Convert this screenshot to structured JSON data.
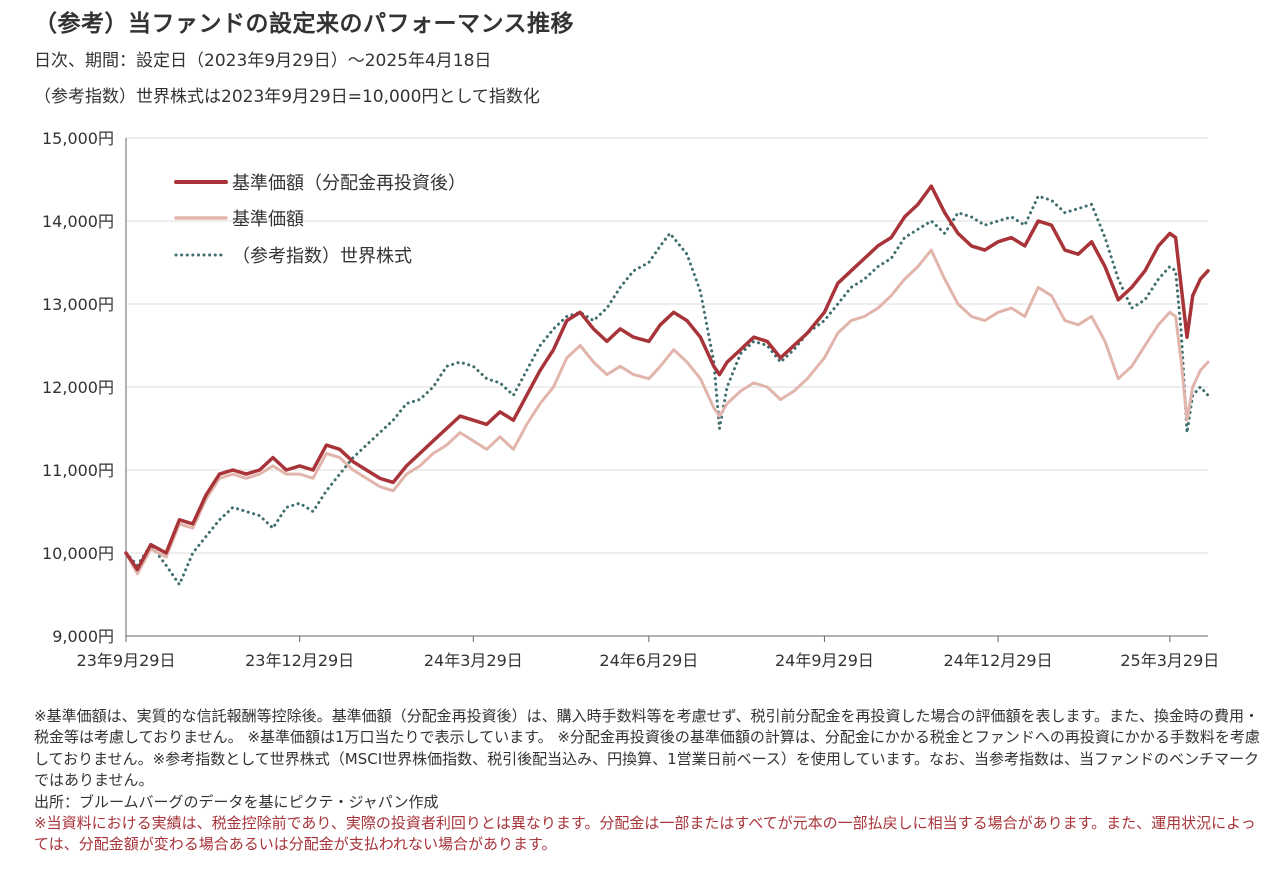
{
  "header": {
    "title": "（参考）当ファンドの設定来のパフォーマンス推移",
    "subtitle1": "日次、期間：設定日（2023年9月29日）～2025年4月18日",
    "subtitle2": "（参考指数）世界株式は2023年9月29日=10,000円として指数化"
  },
  "chart_data": {
    "type": "line",
    "y_ticks": [
      "9,000円",
      "10,000円",
      "11,000円",
      "12,000円",
      "13,000円",
      "14,000円",
      "15,000円"
    ],
    "ylim": [
      9000,
      15000
    ],
    "x_ticks": [
      "23年9月29日",
      "23年12月29日",
      "24年3月29日",
      "24年6月29日",
      "24年9月29日",
      "24年12月29日",
      "25年3月29日"
    ],
    "x_tick_dates": [
      "2023-09-29",
      "2023-12-29",
      "2024-03-29",
      "2024-06-29",
      "2024-09-29",
      "2024-12-29",
      "2025-03-29"
    ],
    "x_range": [
      "2023-09-29",
      "2025-04-18"
    ],
    "grid": true,
    "legend_position": "top-left",
    "series": [
      {
        "name": "基準価額（分配金再投資後）",
        "color": "#a8343a",
        "style": "solid",
        "points": [
          [
            "2023-09-29",
            10000
          ],
          [
            "2023-10-05",
            9800
          ],
          [
            "2023-10-12",
            10100
          ],
          [
            "2023-10-20",
            10000
          ],
          [
            "2023-10-27",
            10400
          ],
          [
            "2023-11-03",
            10350
          ],
          [
            "2023-11-10",
            10700
          ],
          [
            "2023-11-17",
            10950
          ],
          [
            "2023-11-24",
            11000
          ],
          [
            "2023-12-01",
            10950
          ],
          [
            "2023-12-08",
            11000
          ],
          [
            "2023-12-15",
            11150
          ],
          [
            "2023-12-22",
            11000
          ],
          [
            "2023-12-29",
            11050
          ],
          [
            "2024-01-05",
            11000
          ],
          [
            "2024-01-12",
            11300
          ],
          [
            "2024-01-19",
            11250
          ],
          [
            "2024-01-26",
            11100
          ],
          [
            "2024-02-02",
            11000
          ],
          [
            "2024-02-09",
            10900
          ],
          [
            "2024-02-16",
            10850
          ],
          [
            "2024-02-23",
            11050
          ],
          [
            "2024-03-01",
            11200
          ],
          [
            "2024-03-08",
            11350
          ],
          [
            "2024-03-15",
            11500
          ],
          [
            "2024-03-22",
            11650
          ],
          [
            "2024-03-29",
            11600
          ],
          [
            "2024-04-05",
            11550
          ],
          [
            "2024-04-12",
            11700
          ],
          [
            "2024-04-19",
            11600
          ],
          [
            "2024-04-26",
            11900
          ],
          [
            "2024-05-03",
            12200
          ],
          [
            "2024-05-10",
            12450
          ],
          [
            "2024-05-17",
            12800
          ],
          [
            "2024-05-24",
            12900
          ],
          [
            "2024-05-31",
            12700
          ],
          [
            "2024-06-07",
            12550
          ],
          [
            "2024-06-14",
            12700
          ],
          [
            "2024-06-21",
            12600
          ],
          [
            "2024-06-29",
            12550
          ],
          [
            "2024-07-05",
            12750
          ],
          [
            "2024-07-12",
            12900
          ],
          [
            "2024-07-19",
            12800
          ],
          [
            "2024-07-26",
            12600
          ],
          [
            "2024-08-02",
            12250
          ],
          [
            "2024-08-05",
            12150
          ],
          [
            "2024-08-09",
            12300
          ],
          [
            "2024-08-16",
            12450
          ],
          [
            "2024-08-23",
            12600
          ],
          [
            "2024-08-30",
            12550
          ],
          [
            "2024-09-06",
            12350
          ],
          [
            "2024-09-13",
            12500
          ],
          [
            "2024-09-20",
            12650
          ],
          [
            "2024-09-29",
            12900
          ],
          [
            "2024-10-06",
            13250
          ],
          [
            "2024-10-13",
            13400
          ],
          [
            "2024-10-20",
            13550
          ],
          [
            "2024-10-27",
            13700
          ],
          [
            "2024-11-03",
            13800
          ],
          [
            "2024-11-10",
            14050
          ],
          [
            "2024-11-17",
            14200
          ],
          [
            "2024-11-24",
            14420
          ],
          [
            "2024-12-01",
            14100
          ],
          [
            "2024-12-08",
            13850
          ],
          [
            "2024-12-15",
            13700
          ],
          [
            "2024-12-22",
            13650
          ],
          [
            "2024-12-29",
            13750
          ],
          [
            "2025-01-05",
            13800
          ],
          [
            "2025-01-12",
            13700
          ],
          [
            "2025-01-19",
            14000
          ],
          [
            "2025-01-26",
            13950
          ],
          [
            "2025-02-02",
            13650
          ],
          [
            "2025-02-09",
            13600
          ],
          [
            "2025-02-16",
            13750
          ],
          [
            "2025-02-23",
            13450
          ],
          [
            "2025-03-02",
            13050
          ],
          [
            "2025-03-09",
            13200
          ],
          [
            "2025-03-16",
            13400
          ],
          [
            "2025-03-23",
            13700
          ],
          [
            "2025-03-29",
            13850
          ],
          [
            "2025-04-01",
            13800
          ],
          [
            "2025-04-04",
            13200
          ],
          [
            "2025-04-07",
            12600
          ],
          [
            "2025-04-10",
            13100
          ],
          [
            "2025-04-14",
            13300
          ],
          [
            "2025-04-18",
            13400
          ]
        ]
      },
      {
        "name": "基準価額",
        "color": "#e2b5ac",
        "style": "solid",
        "points": [
          [
            "2023-09-29",
            10000
          ],
          [
            "2023-10-05",
            9750
          ],
          [
            "2023-10-12",
            10050
          ],
          [
            "2023-10-20",
            9950
          ],
          [
            "2023-10-27",
            10350
          ],
          [
            "2023-11-03",
            10300
          ],
          [
            "2023-11-10",
            10650
          ],
          [
            "2023-11-17",
            10900
          ],
          [
            "2023-11-24",
            10950
          ],
          [
            "2023-12-01",
            10900
          ],
          [
            "2023-12-08",
            10950
          ],
          [
            "2023-12-15",
            11050
          ],
          [
            "2023-12-22",
            10950
          ],
          [
            "2023-12-29",
            10950
          ],
          [
            "2024-01-05",
            10900
          ],
          [
            "2024-01-12",
            11200
          ],
          [
            "2024-01-19",
            11150
          ],
          [
            "2024-01-26",
            11000
          ],
          [
            "2024-02-02",
            10900
          ],
          [
            "2024-02-09",
            10800
          ],
          [
            "2024-02-16",
            10750
          ],
          [
            "2024-02-23",
            10950
          ],
          [
            "2024-03-01",
            11050
          ],
          [
            "2024-03-08",
            11200
          ],
          [
            "2024-03-15",
            11300
          ],
          [
            "2024-03-22",
            11450
          ],
          [
            "2024-03-29",
            11350
          ],
          [
            "2024-04-05",
            11250
          ],
          [
            "2024-04-12",
            11400
          ],
          [
            "2024-04-19",
            11250
          ],
          [
            "2024-04-26",
            11550
          ],
          [
            "2024-05-03",
            11800
          ],
          [
            "2024-05-10",
            12000
          ],
          [
            "2024-05-17",
            12350
          ],
          [
            "2024-05-24",
            12500
          ],
          [
            "2024-05-31",
            12300
          ],
          [
            "2024-06-07",
            12150
          ],
          [
            "2024-06-14",
            12250
          ],
          [
            "2024-06-21",
            12150
          ],
          [
            "2024-06-29",
            12100
          ],
          [
            "2024-07-05",
            12250
          ],
          [
            "2024-07-12",
            12450
          ],
          [
            "2024-07-19",
            12300
          ],
          [
            "2024-07-26",
            12100
          ],
          [
            "2024-08-02",
            11750
          ],
          [
            "2024-08-05",
            11650
          ],
          [
            "2024-08-09",
            11800
          ],
          [
            "2024-08-16",
            11950
          ],
          [
            "2024-08-23",
            12050
          ],
          [
            "2024-08-30",
            12000
          ],
          [
            "2024-09-06",
            11850
          ],
          [
            "2024-09-13",
            11950
          ],
          [
            "2024-09-20",
            12100
          ],
          [
            "2024-09-29",
            12350
          ],
          [
            "2024-10-06",
            12650
          ],
          [
            "2024-10-13",
            12800
          ],
          [
            "2024-10-20",
            12850
          ],
          [
            "2024-10-27",
            12950
          ],
          [
            "2024-11-03",
            13100
          ],
          [
            "2024-11-10",
            13300
          ],
          [
            "2024-11-17",
            13450
          ],
          [
            "2024-11-24",
            13650
          ],
          [
            "2024-12-01",
            13300
          ],
          [
            "2024-12-08",
            13000
          ],
          [
            "2024-12-15",
            12850
          ],
          [
            "2024-12-22",
            12800
          ],
          [
            "2024-12-29",
            12900
          ],
          [
            "2025-01-05",
            12950
          ],
          [
            "2025-01-12",
            12850
          ],
          [
            "2025-01-19",
            13200
          ],
          [
            "2025-01-26",
            13100
          ],
          [
            "2025-02-02",
            12800
          ],
          [
            "2025-02-09",
            12750
          ],
          [
            "2025-02-16",
            12850
          ],
          [
            "2025-02-23",
            12550
          ],
          [
            "2025-03-02",
            12100
          ],
          [
            "2025-03-09",
            12250
          ],
          [
            "2025-03-16",
            12500
          ],
          [
            "2025-03-23",
            12750
          ],
          [
            "2025-03-29",
            12900
          ],
          [
            "2025-04-01",
            12850
          ],
          [
            "2025-04-04",
            12300
          ],
          [
            "2025-04-07",
            11600
          ],
          [
            "2025-04-10",
            12000
          ],
          [
            "2025-04-14",
            12200
          ],
          [
            "2025-04-18",
            12300
          ]
        ]
      },
      {
        "name": "（参考指数）世界株式",
        "color": "#3f6e6e",
        "style": "dotted",
        "points": [
          [
            "2023-09-29",
            10000
          ],
          [
            "2023-10-05",
            9850
          ],
          [
            "2023-10-12",
            10100
          ],
          [
            "2023-10-20",
            9850
          ],
          [
            "2023-10-27",
            9620
          ],
          [
            "2023-11-03",
            10000
          ],
          [
            "2023-11-10",
            10200
          ],
          [
            "2023-11-17",
            10400
          ],
          [
            "2023-11-24",
            10550
          ],
          [
            "2023-12-01",
            10500
          ],
          [
            "2023-12-08",
            10450
          ],
          [
            "2023-12-15",
            10300
          ],
          [
            "2023-12-22",
            10550
          ],
          [
            "2023-12-29",
            10600
          ],
          [
            "2024-01-05",
            10500
          ],
          [
            "2024-01-12",
            10750
          ],
          [
            "2024-01-19",
            10950
          ],
          [
            "2024-01-26",
            11150
          ],
          [
            "2024-02-02",
            11300
          ],
          [
            "2024-02-09",
            11450
          ],
          [
            "2024-02-16",
            11600
          ],
          [
            "2024-02-23",
            11800
          ],
          [
            "2024-03-01",
            11850
          ],
          [
            "2024-03-08",
            12000
          ],
          [
            "2024-03-15",
            12250
          ],
          [
            "2024-03-22",
            12300
          ],
          [
            "2024-03-29",
            12250
          ],
          [
            "2024-04-05",
            12100
          ],
          [
            "2024-04-12",
            12050
          ],
          [
            "2024-04-19",
            11900
          ],
          [
            "2024-04-26",
            12200
          ],
          [
            "2024-05-03",
            12500
          ],
          [
            "2024-05-10",
            12700
          ],
          [
            "2024-05-17",
            12850
          ],
          [
            "2024-05-24",
            12900
          ],
          [
            "2024-05-31",
            12800
          ],
          [
            "2024-06-07",
            12950
          ],
          [
            "2024-06-14",
            13200
          ],
          [
            "2024-06-21",
            13400
          ],
          [
            "2024-06-29",
            13500
          ],
          [
            "2024-07-05",
            13700
          ],
          [
            "2024-07-10",
            13850
          ],
          [
            "2024-07-19",
            13600
          ],
          [
            "2024-07-26",
            13150
          ],
          [
            "2024-08-02",
            12300
          ],
          [
            "2024-08-05",
            11500
          ],
          [
            "2024-08-09",
            12000
          ],
          [
            "2024-08-16",
            12400
          ],
          [
            "2024-08-23",
            12550
          ],
          [
            "2024-08-30",
            12500
          ],
          [
            "2024-09-06",
            12300
          ],
          [
            "2024-09-13",
            12450
          ],
          [
            "2024-09-20",
            12650
          ],
          [
            "2024-09-29",
            12800
          ],
          [
            "2024-10-06",
            13000
          ],
          [
            "2024-10-13",
            13200
          ],
          [
            "2024-10-20",
            13300
          ],
          [
            "2024-10-27",
            13450
          ],
          [
            "2024-11-03",
            13550
          ],
          [
            "2024-11-10",
            13800
          ],
          [
            "2024-11-17",
            13900
          ],
          [
            "2024-11-24",
            14000
          ],
          [
            "2024-12-01",
            13850
          ],
          [
            "2024-12-08",
            14100
          ],
          [
            "2024-12-15",
            14050
          ],
          [
            "2024-12-22",
            13950
          ],
          [
            "2024-12-29",
            14000
          ],
          [
            "2025-01-05",
            14050
          ],
          [
            "2025-01-12",
            13950
          ],
          [
            "2025-01-19",
            14300
          ],
          [
            "2025-01-26",
            14250
          ],
          [
            "2025-02-02",
            14100
          ],
          [
            "2025-02-09",
            14150
          ],
          [
            "2025-02-16",
            14200
          ],
          [
            "2025-02-23",
            13800
          ],
          [
            "2025-03-02",
            13300
          ],
          [
            "2025-03-09",
            12950
          ],
          [
            "2025-03-16",
            13050
          ],
          [
            "2025-03-23",
            13300
          ],
          [
            "2025-03-29",
            13450
          ],
          [
            "2025-04-01",
            13400
          ],
          [
            "2025-04-04",
            12650
          ],
          [
            "2025-04-07",
            11450
          ],
          [
            "2025-04-10",
            11900
          ],
          [
            "2025-04-14",
            12000
          ],
          [
            "2025-04-18",
            11900
          ]
        ]
      }
    ]
  },
  "notes": {
    "p1": "※基準価額は、実質的な信託報酬等控除後。基準価額（分配金再投資後）は、購入時手数料等を考慮せず、税引前分配金を再投資した場合の評価額を表します。また、換金時の費用・税金等は考慮しておりません。 ※基準価額は1万口当たりで表示しています。 ※分配金再投資後の基準価額の計算は、分配金にかかる税金とファンドへの再投資にかかる手数料を考慮しておりません。※参考指数として世界株式（MSCI世界株価指数、税引後配当込み、円換算、1営業日前ベース）を使用しています。なお、当参考指数は、当ファンドのベンチマークではありません。",
    "p2": "出所：ブルームバーグのデータを基にピクテ・ジャパン作成",
    "p3": "※当資料における実績は、税金控除前であり、実際の投資者利回りとは異なります。分配金は一部またはすべてが元本の一部払戻しに相当する場合があります。また、運用状況によっては、分配金額が変わる場合あるいは分配金が支払われない場合があります。"
  }
}
